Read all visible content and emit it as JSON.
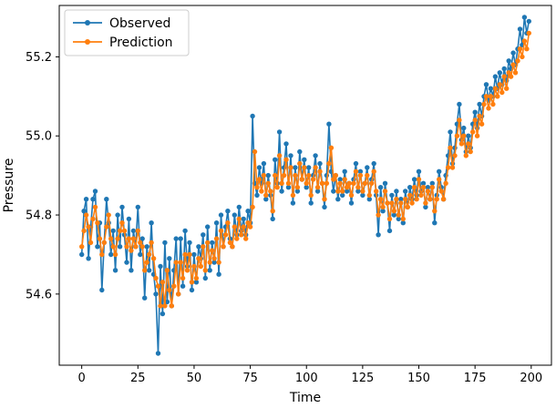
{
  "figure": {
    "background": "#ffffff",
    "accent_colors": {
      "observed": "#1f77b4",
      "prediction": "#ff7f0e"
    },
    "spine_color": "#000000",
    "legend_border_color": "#cccccc"
  },
  "chart_data": {
    "type": "line",
    "title": "",
    "xlabel": "Time",
    "ylabel": "Pressure",
    "xlim": [
      -10,
      209
    ],
    "ylim": [
      54.42,
      55.33
    ],
    "x_ticks": [
      0,
      25,
      50,
      75,
      100,
      125,
      150,
      175,
      200
    ],
    "y_ticks": [
      54.6,
      54.8,
      55.0,
      55.2
    ],
    "grid": false,
    "legend_position": "upper-left",
    "marker": "circle",
    "x": [
      0,
      1,
      2,
      3,
      4,
      5,
      6,
      7,
      8,
      9,
      10,
      11,
      12,
      13,
      14,
      15,
      16,
      17,
      18,
      19,
      20,
      21,
      22,
      23,
      24,
      25,
      26,
      27,
      28,
      29,
      30,
      31,
      32,
      33,
      34,
      35,
      36,
      37,
      38,
      39,
      40,
      41,
      42,
      43,
      44,
      45,
      46,
      47,
      48,
      49,
      50,
      51,
      52,
      53,
      54,
      55,
      56,
      57,
      58,
      59,
      60,
      61,
      62,
      63,
      64,
      65,
      66,
      67,
      68,
      69,
      70,
      71,
      72,
      73,
      74,
      75,
      76,
      77,
      78,
      79,
      80,
      81,
      82,
      83,
      84,
      85,
      86,
      87,
      88,
      89,
      90,
      91,
      92,
      93,
      94,
      95,
      96,
      97,
      98,
      99,
      100,
      101,
      102,
      103,
      104,
      105,
      106,
      107,
      108,
      109,
      110,
      111,
      112,
      113,
      114,
      115,
      116,
      117,
      118,
      119,
      120,
      121,
      122,
      123,
      124,
      125,
      126,
      127,
      128,
      129,
      130,
      131,
      132,
      133,
      134,
      135,
      136,
      137,
      138,
      139,
      140,
      141,
      142,
      143,
      144,
      145,
      146,
      147,
      148,
      149,
      150,
      151,
      152,
      153,
      154,
      155,
      156,
      157,
      158,
      159,
      160,
      161,
      162,
      163,
      164,
      165,
      166,
      167,
      168,
      169,
      170,
      171,
      172,
      173,
      174,
      175,
      176,
      177,
      178,
      179,
      180,
      181,
      182,
      183,
      184,
      185,
      186,
      187,
      188,
      189,
      190,
      191,
      192,
      193,
      194,
      195,
      196,
      197,
      198,
      199
    ],
    "series": [
      {
        "name": "Observed",
        "color": "#1f77b4",
        "values": [
          54.7,
          54.81,
          54.84,
          54.69,
          54.77,
          54.84,
          54.86,
          54.72,
          54.78,
          54.61,
          54.73,
          54.84,
          54.78,
          54.7,
          54.76,
          54.66,
          54.8,
          54.72,
          54.82,
          54.75,
          54.68,
          54.79,
          54.66,
          54.76,
          54.72,
          54.82,
          54.7,
          54.74,
          54.59,
          54.72,
          54.66,
          54.78,
          54.65,
          54.6,
          54.45,
          54.67,
          54.55,
          54.73,
          54.58,
          54.69,
          54.57,
          54.66,
          54.74,
          54.6,
          54.74,
          54.62,
          54.76,
          54.67,
          54.73,
          54.61,
          54.7,
          54.63,
          54.72,
          54.69,
          54.75,
          54.64,
          54.77,
          54.66,
          54.73,
          54.68,
          54.78,
          54.65,
          54.8,
          54.72,
          54.77,
          54.81,
          54.74,
          54.72,
          54.8,
          54.75,
          54.82,
          54.76,
          54.79,
          54.75,
          54.81,
          54.78,
          55.05,
          54.88,
          54.85,
          54.92,
          54.88,
          54.93,
          54.84,
          54.9,
          54.85,
          54.79,
          54.94,
          54.88,
          55.01,
          54.86,
          54.92,
          54.98,
          54.87,
          54.95,
          54.83,
          54.92,
          54.86,
          54.96,
          54.89,
          54.94,
          54.87,
          54.92,
          54.83,
          54.9,
          54.95,
          54.86,
          54.93,
          54.88,
          54.82,
          54.9,
          55.03,
          54.91,
          54.86,
          54.9,
          54.84,
          54.89,
          54.85,
          54.91,
          54.86,
          54.88,
          54.83,
          54.89,
          54.93,
          54.86,
          54.91,
          54.85,
          54.88,
          54.92,
          54.84,
          54.89,
          54.93,
          54.85,
          54.75,
          54.87,
          54.81,
          54.88,
          54.83,
          54.76,
          54.85,
          54.8,
          54.86,
          54.79,
          54.84,
          54.78,
          54.86,
          54.82,
          54.87,
          54.84,
          54.89,
          54.85,
          54.91,
          54.86,
          54.88,
          54.82,
          54.87,
          54.84,
          54.88,
          54.78,
          54.85,
          54.91,
          54.87,
          54.84,
          54.9,
          54.95,
          55.01,
          54.93,
          54.97,
          55.03,
          55.08,
          54.99,
          55.02,
          54.96,
          55.0,
          54.97,
          55.03,
          55.06,
          55.02,
          55.08,
          55.05,
          55.1,
          55.13,
          55.09,
          55.12,
          55.1,
          55.15,
          55.12,
          55.16,
          55.13,
          55.17,
          55.14,
          55.19,
          55.17,
          55.21,
          55.18,
          55.22,
          55.27,
          55.23,
          55.3,
          55.26,
          55.29
        ]
      },
      {
        "name": "Prediction",
        "color": "#ff7f0e",
        "values": [
          54.72,
          54.76,
          54.8,
          54.77,
          54.73,
          54.79,
          54.82,
          54.78,
          54.74,
          54.7,
          54.73,
          54.77,
          54.8,
          54.74,
          54.72,
          54.7,
          54.74,
          54.76,
          54.78,
          54.76,
          54.72,
          54.74,
          54.71,
          54.74,
          54.72,
          54.76,
          54.73,
          54.72,
          54.66,
          54.68,
          54.7,
          54.73,
          54.69,
          54.64,
          54.62,
          54.57,
          54.63,
          54.57,
          54.66,
          54.61,
          54.57,
          54.62,
          54.68,
          54.6,
          54.68,
          54.64,
          54.7,
          54.66,
          54.7,
          54.63,
          54.67,
          54.64,
          54.69,
          54.67,
          54.72,
          54.66,
          54.73,
          54.68,
          54.71,
          54.69,
          54.74,
          54.68,
          54.76,
          54.72,
          54.75,
          54.78,
          54.73,
          54.72,
          54.77,
          54.74,
          54.79,
          54.75,
          54.77,
          54.74,
          54.78,
          54.77,
          54.82,
          54.96,
          54.87,
          54.89,
          54.86,
          54.9,
          54.85,
          54.88,
          54.86,
          54.81,
          54.9,
          54.87,
          54.95,
          54.88,
          54.9,
          54.94,
          54.88,
          54.92,
          54.85,
          54.9,
          54.87,
          54.93,
          54.89,
          54.92,
          54.88,
          54.9,
          54.85,
          54.89,
          54.92,
          54.87,
          54.91,
          54.88,
          54.84,
          54.88,
          54.93,
          54.97,
          54.89,
          54.9,
          54.86,
          54.88,
          54.86,
          54.89,
          54.87,
          54.88,
          54.85,
          54.88,
          54.91,
          54.87,
          54.9,
          54.86,
          54.88,
          54.9,
          54.85,
          54.88,
          54.91,
          54.86,
          54.8,
          54.84,
          54.82,
          54.86,
          54.83,
          54.79,
          54.83,
          54.81,
          54.84,
          54.8,
          54.83,
          54.79,
          54.84,
          54.82,
          54.85,
          54.83,
          54.87,
          54.84,
          54.89,
          54.85,
          54.87,
          54.83,
          54.86,
          54.84,
          54.87,
          54.81,
          54.84,
          54.89,
          54.86,
          54.84,
          54.88,
          54.92,
          54.97,
          54.92,
          54.95,
          55.0,
          55.04,
          54.98,
          55.0,
          54.95,
          54.98,
          54.96,
          55.01,
          55.04,
          55.0,
          55.05,
          55.03,
          55.08,
          55.1,
          55.07,
          55.1,
          55.08,
          55.12,
          55.1,
          55.13,
          55.11,
          55.15,
          55.12,
          55.16,
          55.15,
          55.18,
          55.16,
          55.19,
          55.22,
          55.2,
          55.24,
          55.22,
          55.26
        ]
      }
    ]
  }
}
